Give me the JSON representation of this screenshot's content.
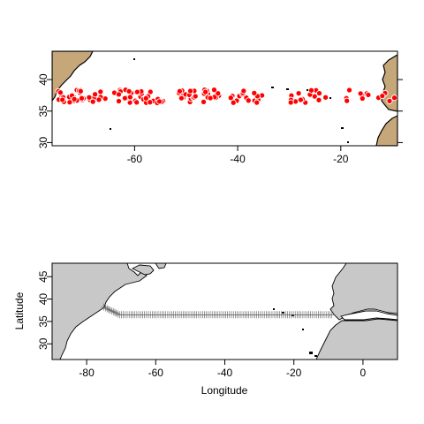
{
  "panels": {
    "top": {
      "x_ticks": [
        -60,
        -40,
        -20
      ],
      "y_ticks": [
        30,
        35,
        40
      ],
      "land_color": "#c6a77a",
      "point_color": "#ff0000",
      "point_border": "#ffffff",
      "xlim": [
        -76,
        -9
      ],
      "ylim": [
        29.5,
        44.5
      ],
      "points_lat_band": [
        36.3,
        38.4
      ],
      "clusters": [
        {
          "lon": -74.0,
          "n": 8
        },
        {
          "lon": -72.0,
          "n": 8
        },
        {
          "lon": -70.0,
          "n": 7
        },
        {
          "lon": -68.0,
          "n": 7
        },
        {
          "lon": -66.5,
          "n": 5
        },
        {
          "lon": -63.5,
          "n": 5
        },
        {
          "lon": -61.0,
          "n": 9
        },
        {
          "lon": -59.0,
          "n": 8
        },
        {
          "lon": -57.0,
          "n": 6
        },
        {
          "lon": -55.0,
          "n": 5
        },
        {
          "lon": -50.5,
          "n": 7
        },
        {
          "lon": -48.5,
          "n": 8
        },
        {
          "lon": -46.5,
          "n": 8
        },
        {
          "lon": -44.5,
          "n": 7
        },
        {
          "lon": -40.5,
          "n": 6
        },
        {
          "lon": -38.5,
          "n": 5
        },
        {
          "lon": -36.0,
          "n": 7
        },
        {
          "lon": -29.5,
          "n": 4
        },
        {
          "lon": -27.5,
          "n": 4
        },
        {
          "lon": -25.5,
          "n": 4
        },
        {
          "lon": -23.5,
          "n": 3
        },
        {
          "lon": -18.5,
          "n": 3
        },
        {
          "lon": -15.5,
          "n": 6
        },
        {
          "lon": -12.0,
          "n": 4
        },
        {
          "lon": -9.8,
          "n": 2
        }
      ]
    },
    "bottom": {
      "x_ticks": [
        -80,
        -60,
        -40,
        -20,
        0
      ],
      "y_ticks": [
        30,
        35,
        40,
        45
      ],
      "xlabel": "Longitude",
      "ylabel": "Latitude",
      "land_color": "#c8c8c8",
      "xlim": [
        -90,
        10
      ],
      "ylim": [
        26.5,
        48
      ],
      "track": {
        "start": {
          "lon": -75.0,
          "lat": 38.2
        },
        "bend": {
          "lon": -70.5,
          "lat": 36.5
        },
        "end": {
          "lon": -9.0,
          "lat": 36.5
        },
        "marker": "+"
      }
    }
  }
}
